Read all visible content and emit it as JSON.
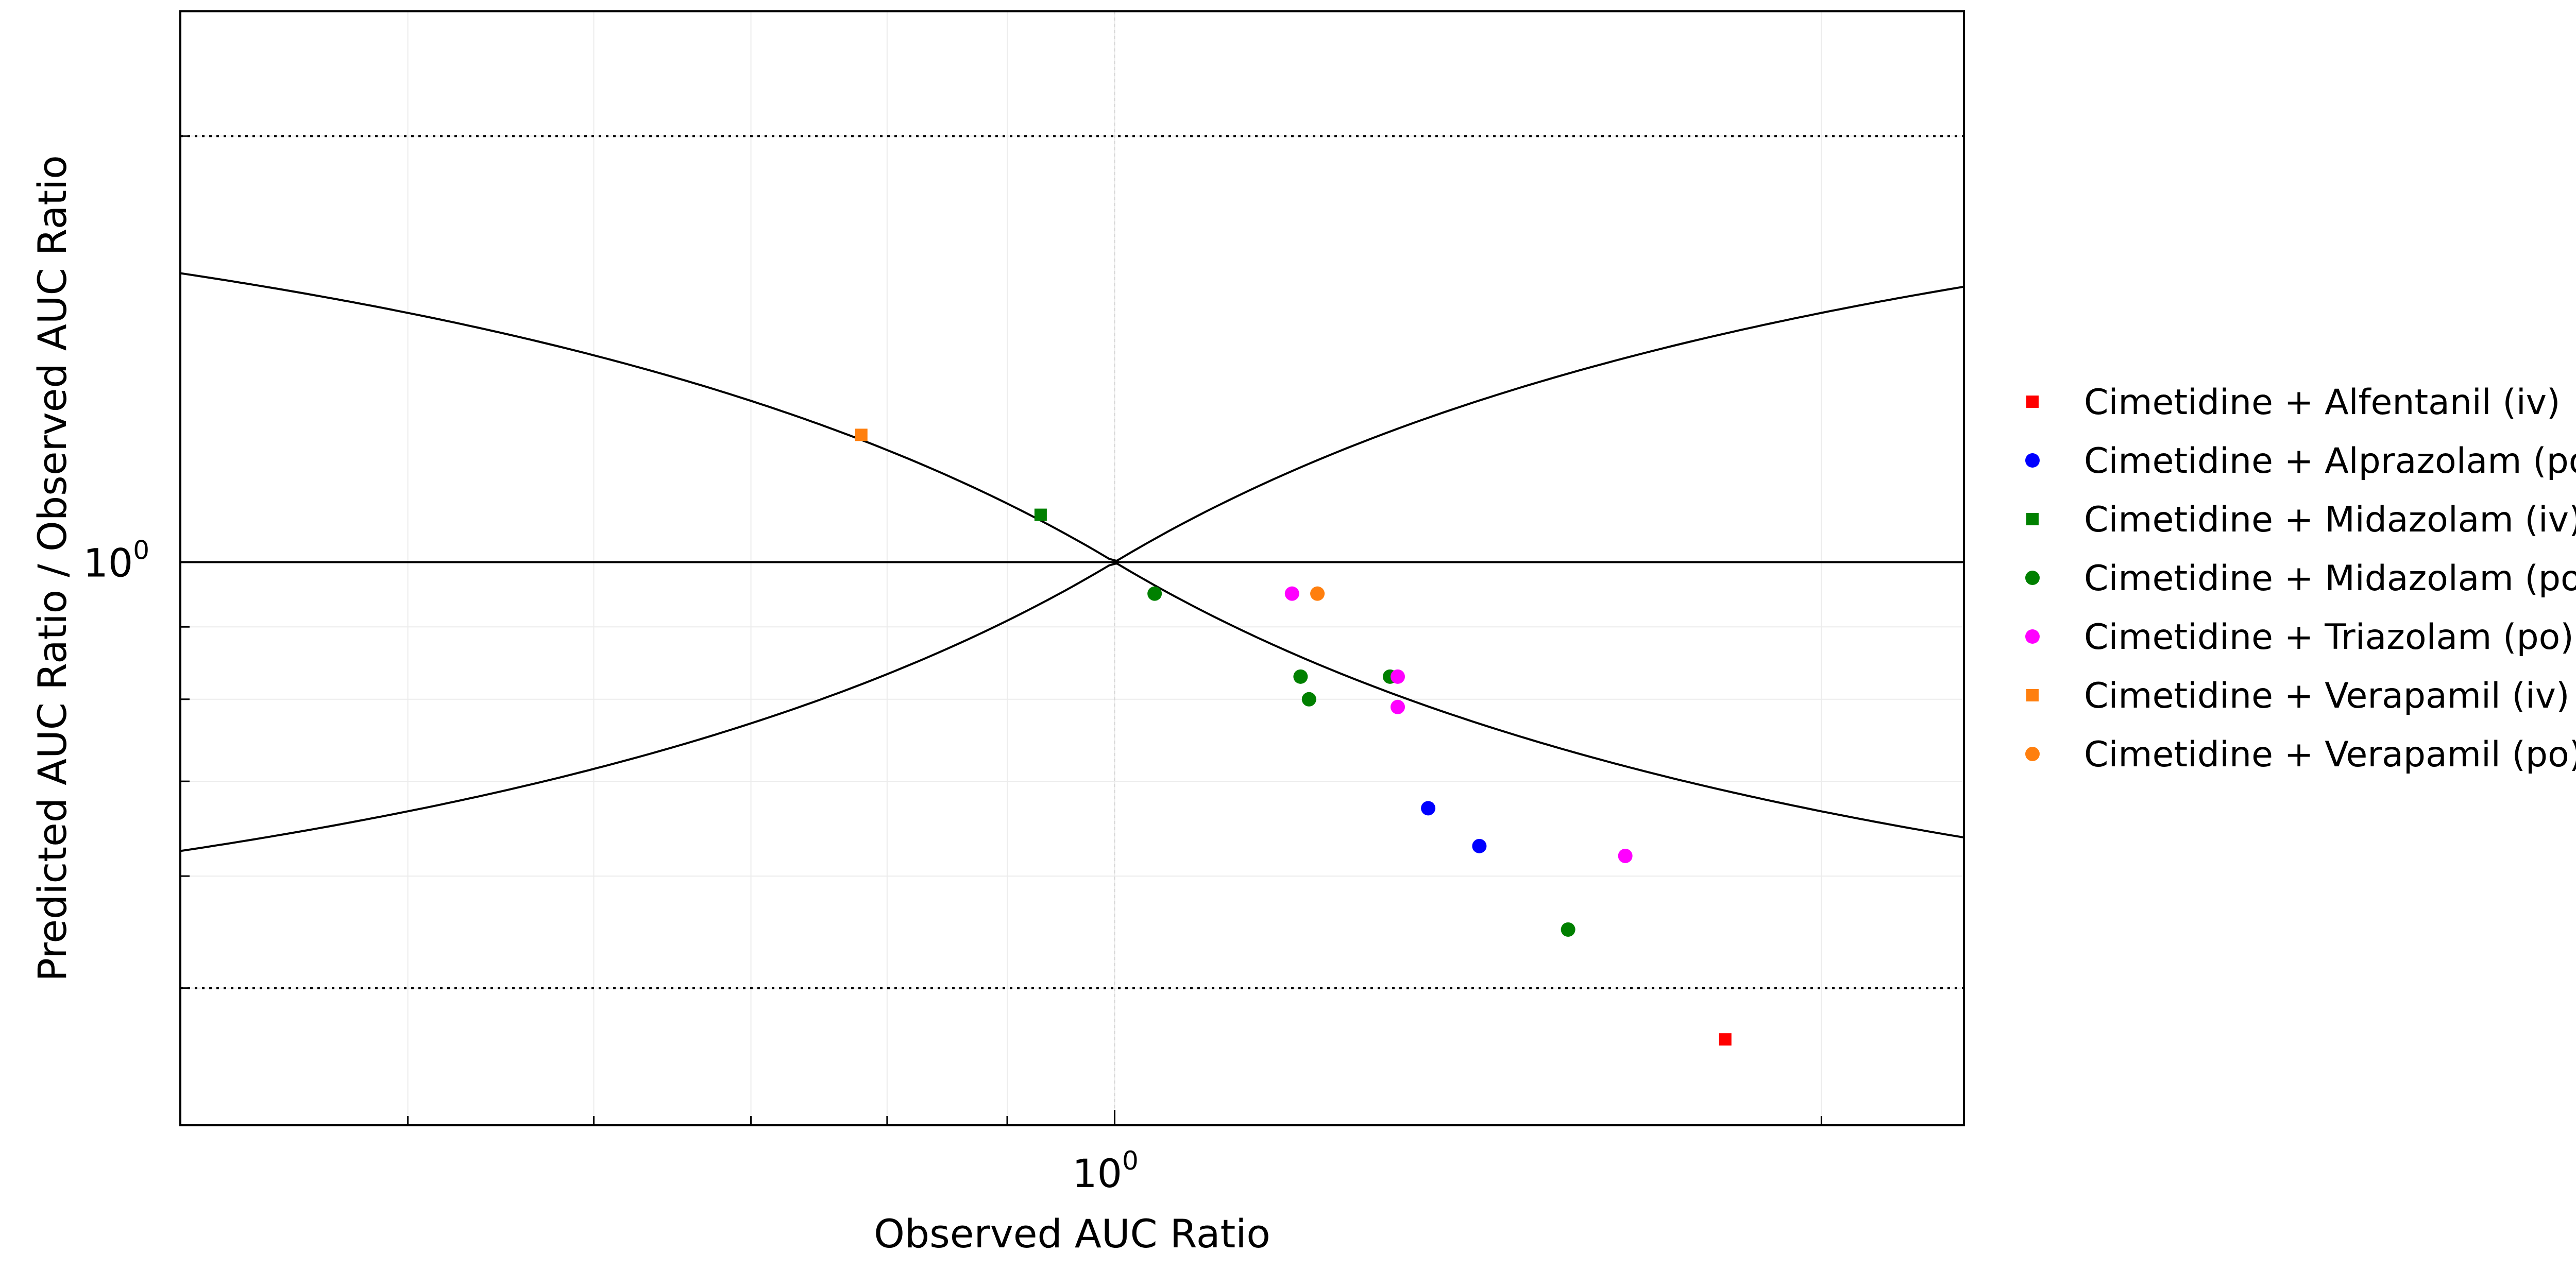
{
  "chart_data": {
    "type": "scatter",
    "xlabel": "Observed AUC Ratio",
    "ylabel": "Predicted AUC Ratio / Observed AUC Ratio",
    "x_scale": "log",
    "y_scale": "log",
    "xlim": [
      0.4,
      2.3
    ],
    "ylim": [
      0.4,
      2.45
    ],
    "x_tick_labels": [
      {
        "base": "10",
        "exp": "0",
        "value": 1
      }
    ],
    "y_tick_labels": [
      {
        "base": "10",
        "exp": "0",
        "value": 1
      }
    ],
    "reference_lines": {
      "identity": 1,
      "dotted_limits": [
        0.5,
        2
      ],
      "guest_limit_curves": true
    },
    "grid": true,
    "legend_position": "right",
    "series": [
      {
        "name": "Cimetidine + Alfentanil (iv)",
        "color": "#ff0000",
        "marker": "square",
        "points": [
          {
            "x": 1.82,
            "y": 0.46
          }
        ]
      },
      {
        "name": "Cimetidine + Alprazolam (po)",
        "color": "#0000ff",
        "marker": "circle",
        "points": [
          {
            "x": 1.36,
            "y": 0.67
          },
          {
            "x": 1.43,
            "y": 0.63
          }
        ]
      },
      {
        "name": "Cimetidine + Midazolam (iv)",
        "color": "#008000",
        "marker": "square",
        "points": [
          {
            "x": 0.93,
            "y": 1.08
          }
        ]
      },
      {
        "name": "Cimetidine + Midazolam (po)",
        "color": "#008000",
        "marker": "circle",
        "points": [
          {
            "x": 1.04,
            "y": 0.95
          },
          {
            "x": 1.2,
            "y": 0.83
          },
          {
            "x": 1.21,
            "y": 0.8
          },
          {
            "x": 1.31,
            "y": 0.83
          },
          {
            "x": 1.56,
            "y": 0.55
          }
        ]
      },
      {
        "name": "Cimetidine + Triazolam (po)",
        "color": "#ff00ff",
        "marker": "circle",
        "points": [
          {
            "x": 1.19,
            "y": 0.95
          },
          {
            "x": 1.32,
            "y": 0.83
          },
          {
            "x": 1.32,
            "y": 0.79
          },
          {
            "x": 1.65,
            "y": 0.62
          }
        ]
      },
      {
        "name": "Cimetidine + Verapamil (iv)",
        "color": "#ff7f0e",
        "marker": "square",
        "points": [
          {
            "x": 0.78,
            "y": 1.23
          }
        ]
      },
      {
        "name": "Cimetidine + Verapamil (po)",
        "color": "#ff7f0e",
        "marker": "circle",
        "points": [
          {
            "x": 1.22,
            "y": 0.95
          }
        ]
      }
    ]
  }
}
